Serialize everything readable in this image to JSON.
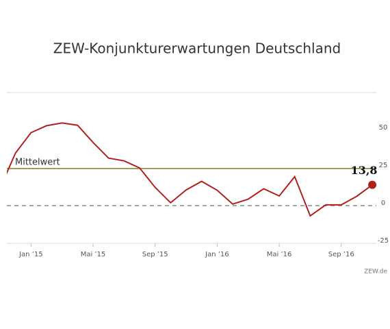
{
  "chart_data": {
    "type": "line",
    "title": "ZEW-Konjunkturerwartungen Deutschland",
    "source": "ZEW.de",
    "categories": [
      null,
      null,
      "Jan ’15",
      null,
      null,
      null,
      "Mai ’15",
      null,
      null,
      null,
      "Sep ’15",
      null,
      null,
      null,
      "Jan ’16",
      null,
      null,
      null,
      "Mai ’16",
      null,
      null,
      null,
      "Sep ’16",
      null,
      null
    ],
    "series": [
      {
        "color": "#b0201e",
        "values": [
          11.5,
          34.9,
          48.4,
          53.0,
          54.8,
          53.3,
          41.9,
          31.5,
          29.7,
          25.0,
          12.1,
          1.9,
          10.4,
          16.1,
          10.2,
          1.0,
          4.3,
          11.2,
          6.4,
          19.2,
          -6.8,
          0.5,
          0.5,
          6.2,
          13.8
        ]
      }
    ],
    "last_value_label": "13,8",
    "mean": {
      "label": "Mittelwert",
      "value": 24.6,
      "color": "#8a7a2a"
    },
    "ylim": [
      -25,
      75
    ],
    "yticks": [
      -25,
      0,
      25,
      50
    ],
    "zero_line": true,
    "grid": false
  }
}
